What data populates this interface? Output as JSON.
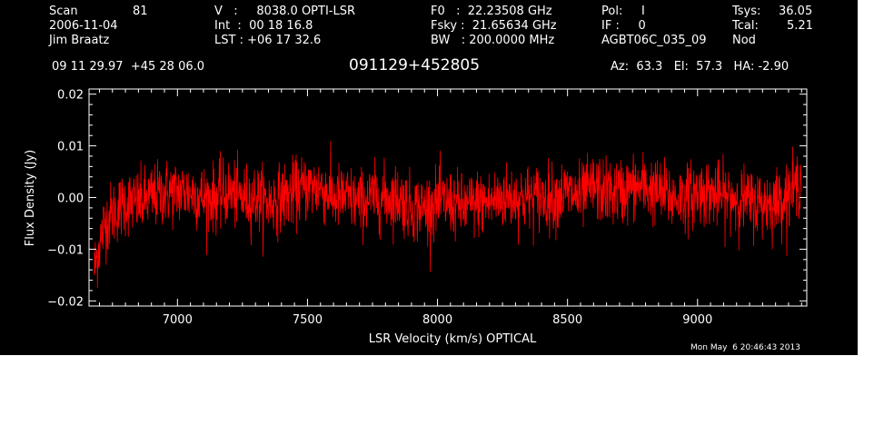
{
  "header": {
    "scan_label": "Scan",
    "scan_value": "81",
    "date": "2006-11-04",
    "observer": "Jim Braatz",
    "v_line": "V   :     8038.0 OPTI-LSR",
    "int_line": "Int  :  00 18 16.8",
    "lst_line": "LST : +06 17 32.6",
    "f0_line": "F0   :  22.23508 GHz",
    "fsky_line": "Fsky :  21.65634 GHz",
    "bw_line": "BW   : 200.0000 MHz",
    "pol_line": "Pol:     I",
    "if_line": "IF :     0",
    "project": "AGBT06C_035_09",
    "tsys_label": "Tsys:",
    "tsys_value": "36.05",
    "tcal_label": "Tcal:",
    "tcal_value": "5.21",
    "mode": "Nod",
    "coords": "09 11 29.97  +45 28 06.0",
    "source": "091129+452805",
    "pointing": "Az:  63.3   El:  57.3   HA: -2.90"
  },
  "timestamp": "Mon May  6 20:46:43 2013",
  "colors": {
    "background": "#000000",
    "axes": "#ffffff",
    "trace": "#ff0000"
  },
  "chart_data": {
    "type": "line",
    "xlabel": "LSR Velocity (km/s) OPTICAL",
    "ylabel": "Flux Density (Jy)",
    "xlim": [
      6660,
      9420
    ],
    "ylim": [
      -0.021,
      0.021
    ],
    "x_ticks": [
      7000,
      7500,
      8000,
      8500,
      9000
    ],
    "x_tick_labels": [
      "7000",
      "7500",
      "8000",
      "8500",
      "9000"
    ],
    "y_ticks": [
      -0.02,
      -0.01,
      0.0,
      0.01,
      0.02
    ],
    "y_tick_labels": [
      "−0.02",
      "−0.01",
      "0.00",
      "0.01",
      "0.02"
    ],
    "grid": false,
    "series": [
      {
        "color": "#ff0000",
        "x": [
          6680,
          6700,
          6720,
          6750,
          6800,
          6850,
          6900,
          6950,
          7000,
          7050,
          7100,
          7150,
          7200,
          7250,
          7300,
          7350,
          7400,
          7450,
          7500,
          7550,
          7600,
          7650,
          7700,
          7750,
          7800,
          7850,
          7900,
          7950,
          8000,
          8050,
          8100,
          8150,
          8200,
          8250,
          8300,
          8350,
          8400,
          8450,
          8500,
          8550,
          8600,
          8650,
          8700,
          8750,
          8800,
          8850,
          8900,
          8950,
          9000,
          9050,
          9100,
          9150,
          9200,
          9250,
          9300,
          9350,
          9380,
          9400
        ],
        "values": [
          -0.014,
          -0.009,
          -0.005,
          -0.003,
          -0.001,
          -0.001,
          0.0,
          0.001,
          0.001,
          0.001,
          0.0,
          0.0,
          0.001,
          0.0,
          0.0,
          -0.001,
          0.0,
          0.001,
          0.002,
          0.002,
          0.0,
          0.0,
          -0.001,
          0.0,
          0.0,
          0.0,
          -0.002,
          -0.002,
          -0.001,
          -0.001,
          -0.002,
          -0.001,
          -0.001,
          0.0,
          0.0,
          0.0,
          0.0,
          0.0,
          0.001,
          0.0,
          0.002,
          0.001,
          0.001,
          0.002,
          0.002,
          0.001,
          0.0,
          0.0,
          0.001,
          0.001,
          0.0,
          0.0,
          -0.001,
          -0.001,
          -0.001,
          0.001,
          0.002,
          0.004
        ],
        "noise_rms": 0.0032
      }
    ]
  }
}
